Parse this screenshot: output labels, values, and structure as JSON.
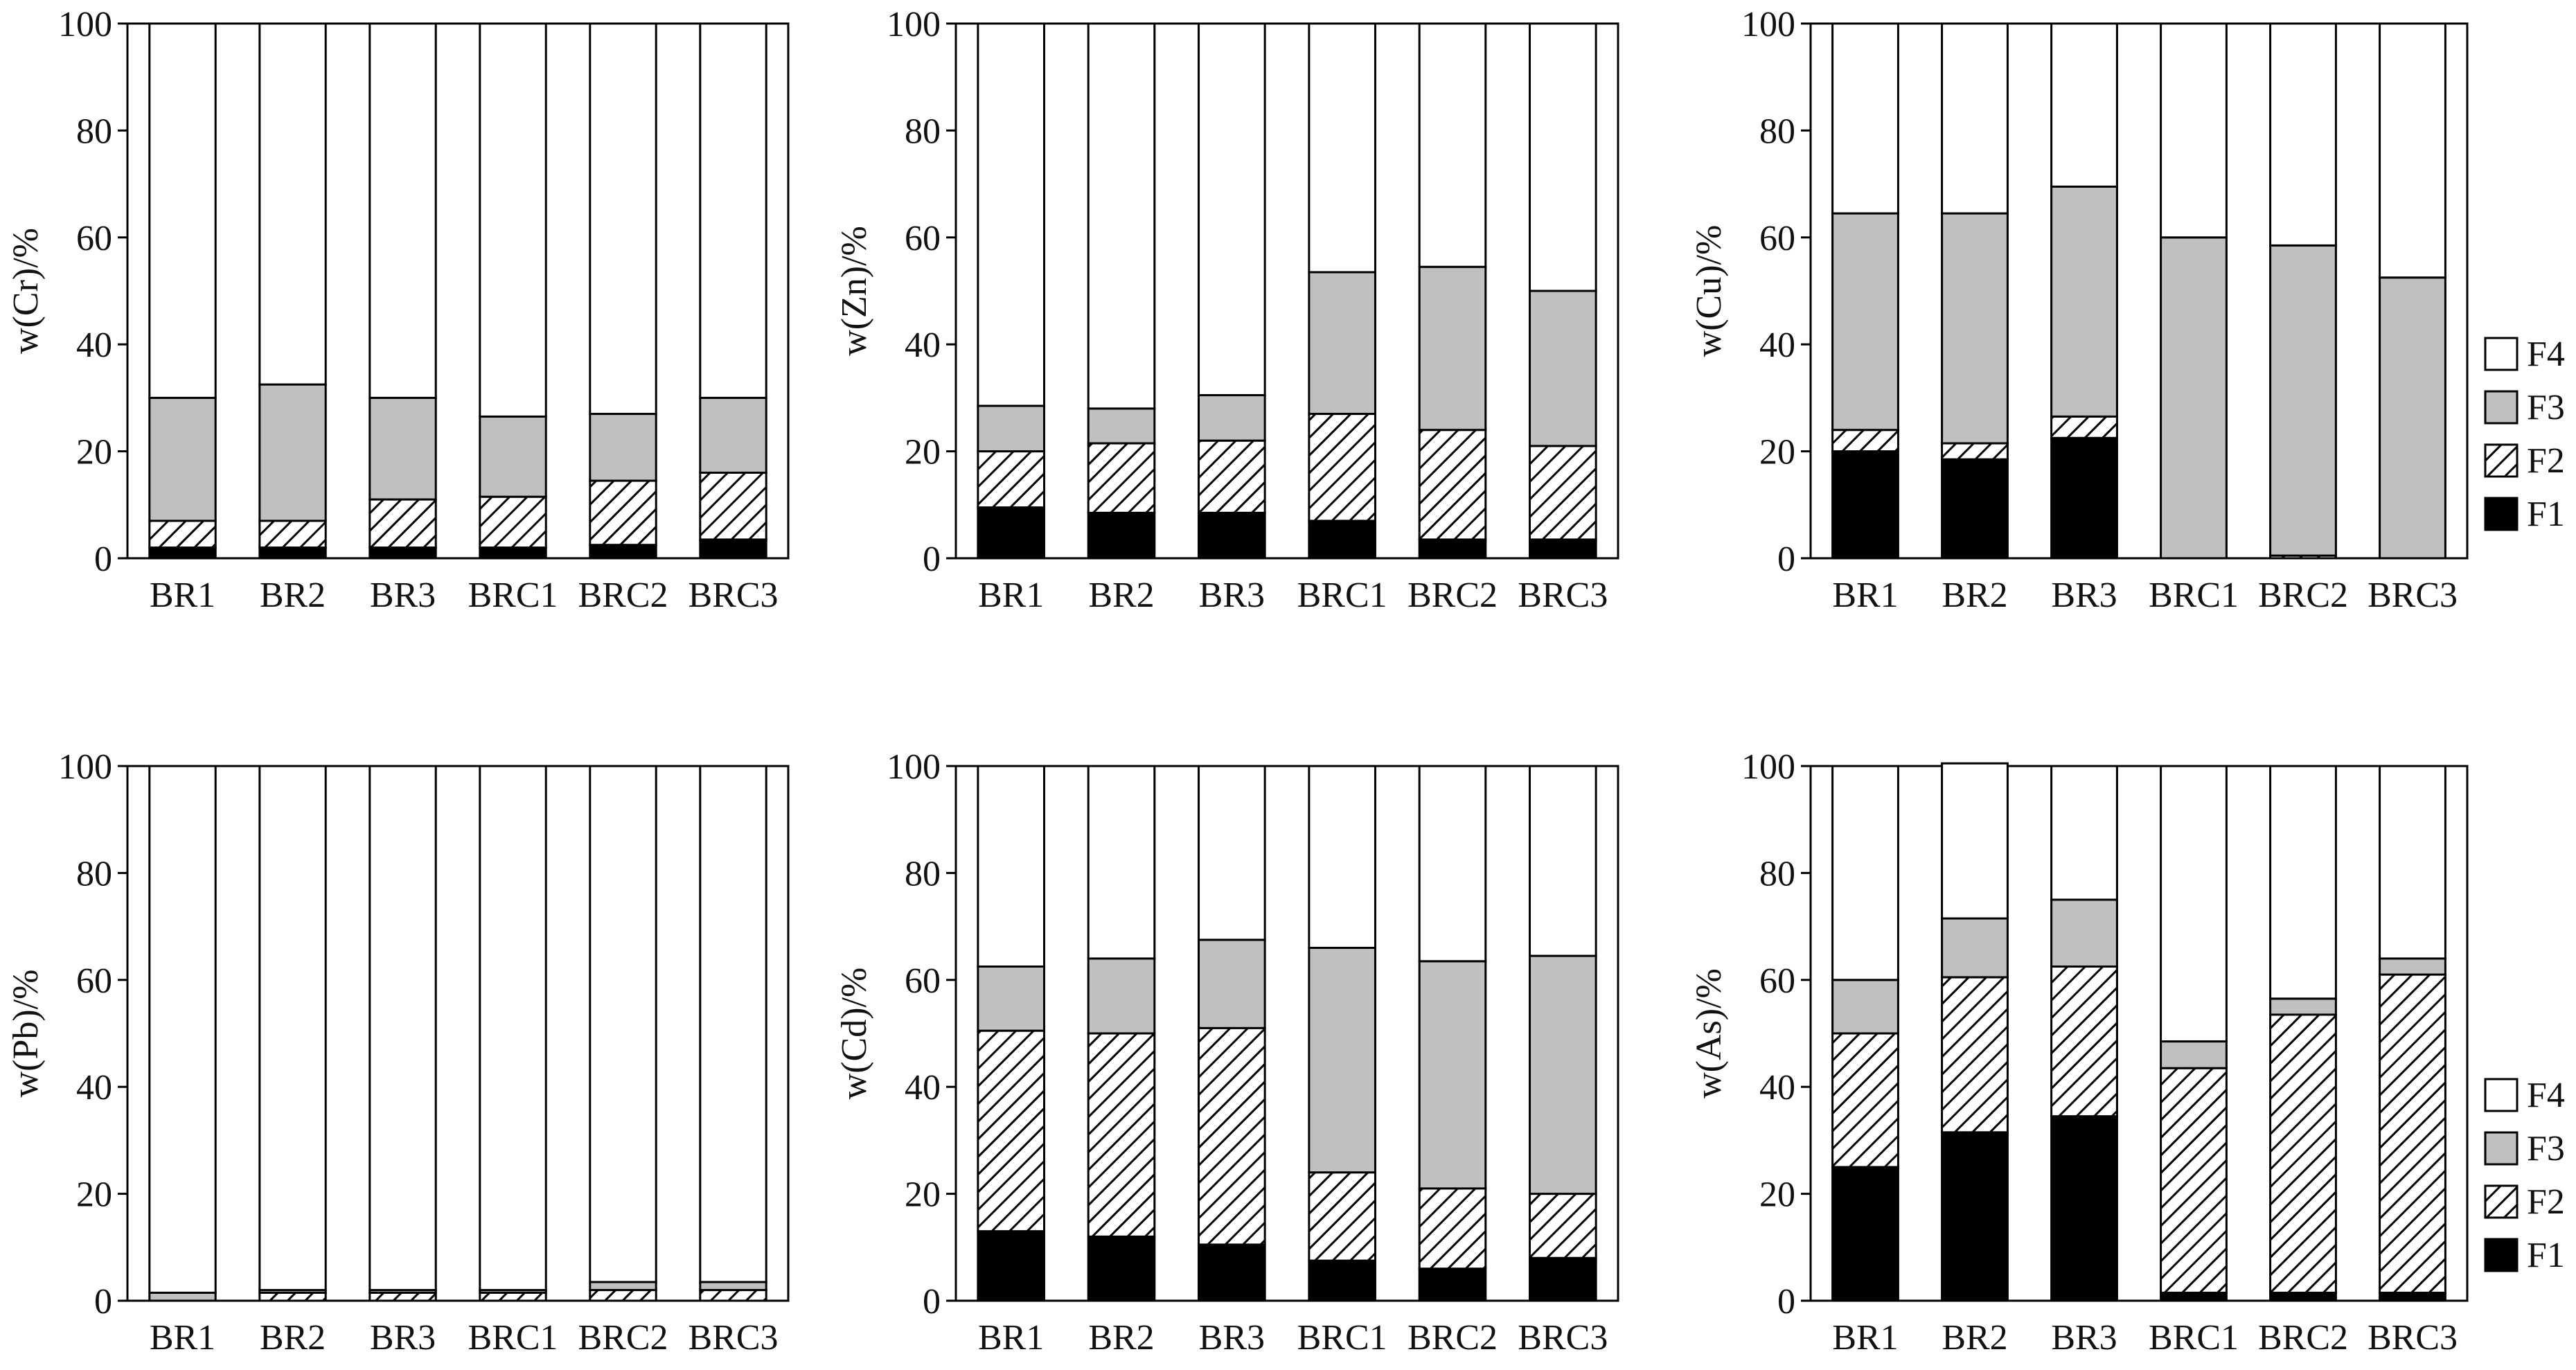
{
  "fractions": [
    "F1",
    "F2",
    "F3",
    "F4"
  ],
  "colors": {
    "F1": "#000000",
    "F2": "hatch",
    "F3": "#c0c0c0",
    "F4": "#ffffff"
  },
  "legend": {
    "position": "right",
    "labels": [
      "F4",
      "F3",
      "F2",
      "F1"
    ]
  },
  "chart_data": [
    {
      "type": "bar",
      "stacked": true,
      "categories": [
        "BR1",
        "BR2",
        "BR3",
        "BRC1",
        "BRC2",
        "BRC3"
      ],
      "ylabel": "w(Cr)/%",
      "ylim": [
        0,
        100
      ],
      "yticks": [
        0,
        20,
        40,
        60,
        80,
        100
      ],
      "series": [
        {
          "name": "F1",
          "values": [
            2,
            2,
            2,
            2,
            2.5,
            3.5
          ]
        },
        {
          "name": "F2",
          "values": [
            5,
            5,
            9,
            9.5,
            12,
            12.5
          ]
        },
        {
          "name": "F3",
          "values": [
            23,
            25.5,
            19,
            15,
            12.5,
            14
          ]
        },
        {
          "name": "F4",
          "values": [
            70,
            67.5,
            70,
            73.5,
            73,
            70
          ]
        }
      ]
    },
    {
      "type": "bar",
      "stacked": true,
      "categories": [
        "BR1",
        "BR2",
        "BR3",
        "BRC1",
        "BRC2",
        "BRC3"
      ],
      "ylabel": "w(Zn)/%",
      "ylim": [
        0,
        100
      ],
      "yticks": [
        0,
        20,
        40,
        60,
        80,
        100
      ],
      "series": [
        {
          "name": "F1",
          "values": [
            9.5,
            8.5,
            8.5,
            7,
            3.5,
            3.5
          ]
        },
        {
          "name": "F2",
          "values": [
            10.5,
            13,
            13.5,
            20,
            20.5,
            17.5
          ]
        },
        {
          "name": "F3",
          "values": [
            8.5,
            6.5,
            8.5,
            26.5,
            30.5,
            29
          ]
        },
        {
          "name": "F4",
          "values": [
            71.5,
            72,
            69.5,
            46.5,
            45.5,
            50
          ]
        }
      ]
    },
    {
      "type": "bar",
      "stacked": true,
      "categories": [
        "BR1",
        "BR2",
        "BR3",
        "BRC1",
        "BRC2",
        "BRC3"
      ],
      "ylabel": "w(Cu)/%",
      "ylim": [
        0,
        100
      ],
      "yticks": [
        0,
        20,
        40,
        60,
        80,
        100
      ],
      "series": [
        {
          "name": "F1",
          "values": [
            20,
            18.5,
            22.5,
            0,
            0,
            0
          ]
        },
        {
          "name": "F2",
          "values": [
            4,
            3,
            4,
            0,
            0.5,
            0
          ]
        },
        {
          "name": "F3",
          "values": [
            40.5,
            43,
            43,
            60,
            58,
            52.5
          ]
        },
        {
          "name": "F4",
          "values": [
            35.5,
            35.5,
            30.5,
            40,
            41.5,
            47.5
          ]
        }
      ]
    },
    {
      "type": "bar",
      "stacked": true,
      "categories": [
        "BR1",
        "BR2",
        "BR3",
        "BRC1",
        "BRC2",
        "BRC3"
      ],
      "ylabel": "w(Pb)/%",
      "ylim": [
        0,
        100
      ],
      "yticks": [
        0,
        20,
        40,
        60,
        80,
        100
      ],
      "series": [
        {
          "name": "F1",
          "values": [
            0,
            0,
            0,
            0,
            0,
            0
          ]
        },
        {
          "name": "F2",
          "values": [
            0,
            1.5,
            1.5,
            1.5,
            2,
            2
          ]
        },
        {
          "name": "F3",
          "values": [
            1.5,
            0.5,
            0.5,
            0.5,
            1.5,
            1.5
          ]
        },
        {
          "name": "F4",
          "values": [
            98.5,
            98,
            98,
            98,
            96.5,
            96.5
          ]
        }
      ]
    },
    {
      "type": "bar",
      "stacked": true,
      "categories": [
        "BR1",
        "BR2",
        "BR3",
        "BRC1",
        "BRC2",
        "BRC3"
      ],
      "ylabel": "w(Cd)/%",
      "ylim": [
        0,
        100
      ],
      "yticks": [
        0,
        20,
        40,
        60,
        80,
        100
      ],
      "series": [
        {
          "name": "F1",
          "values": [
            13,
            12,
            10.5,
            7.5,
            6,
            8
          ]
        },
        {
          "name": "F2",
          "values": [
            37.5,
            38,
            40.5,
            16.5,
            15,
            12
          ]
        },
        {
          "name": "F3",
          "values": [
            12,
            14,
            16.5,
            42,
            42.5,
            44.5
          ]
        },
        {
          "name": "F4",
          "values": [
            37.5,
            36,
            32.5,
            34,
            36.5,
            35.5
          ]
        }
      ]
    },
    {
      "type": "bar",
      "stacked": true,
      "categories": [
        "BR1",
        "BR2",
        "BR3",
        "BRC1",
        "BRC2",
        "BRC3"
      ],
      "ylabel": "w(As)/%",
      "ylim": [
        0,
        100
      ],
      "yticks": [
        0,
        20,
        40,
        60,
        80,
        100
      ],
      "series": [
        {
          "name": "F1",
          "values": [
            25,
            31.5,
            34.5,
            1.5,
            1.5,
            1.5
          ]
        },
        {
          "name": "F2",
          "values": [
            25,
            29,
            28,
            42,
            52,
            59.5
          ]
        },
        {
          "name": "F3",
          "values": [
            10,
            11,
            12.5,
            5,
            3,
            3
          ]
        },
        {
          "name": "F4",
          "values": [
            40,
            29,
            25,
            51.5,
            43.5,
            36
          ]
        }
      ]
    }
  ]
}
